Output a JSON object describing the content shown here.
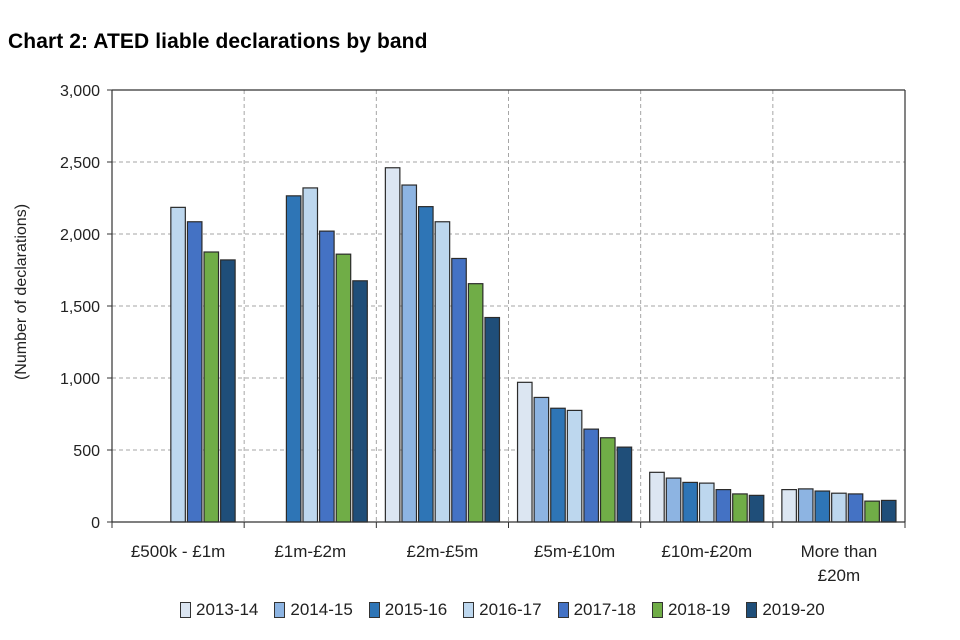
{
  "chart_data": {
    "type": "bar",
    "title": "Chart 2: ATED liable declarations by band",
    "ylabel": "(Number of declarations)",
    "xlabel": "",
    "ylim": [
      0,
      3000
    ],
    "yticks": [
      0,
      500,
      1000,
      1500,
      2000,
      2500,
      3000
    ],
    "ytick_labels": [
      "0",
      "500",
      "1,000",
      "1,500",
      "2,000",
      "2,500",
      "3,000"
    ],
    "grid": true,
    "legend_position": "bottom",
    "categories": [
      [
        "£500k - £1m"
      ],
      [
        "£1m-£2m"
      ],
      [
        "£2m-£5m"
      ],
      [
        "£5m-£10m"
      ],
      [
        "£10m-£20m"
      ],
      [
        "More than",
        "£20m"
      ]
    ],
    "series": [
      {
        "name": "2013-14",
        "color": "#dce6f2",
        "values": [
          null,
          null,
          2460,
          970,
          345,
          225
        ]
      },
      {
        "name": "2014-15",
        "color": "#8db4e2",
        "values": [
          null,
          null,
          2340,
          865,
          305,
          230
        ]
      },
      {
        "name": "2015-16",
        "color": "#2e75b6",
        "values": [
          null,
          2265,
          2190,
          790,
          275,
          215
        ]
      },
      {
        "name": "2016-17",
        "color": "#bdd7ee",
        "values": [
          2185,
          2320,
          2085,
          775,
          270,
          200
        ]
      },
      {
        "name": "2017-18",
        "color": "#4472c4",
        "values": [
          2085,
          2020,
          1830,
          645,
          225,
          195
        ]
      },
      {
        "name": "2018-19",
        "color": "#70ad47",
        "values": [
          1875,
          1860,
          1655,
          585,
          195,
          145
        ]
      },
      {
        "name": "2019-20",
        "color": "#1f4e79",
        "values": [
          1820,
          1675,
          1420,
          520,
          185,
          150
        ]
      }
    ]
  }
}
